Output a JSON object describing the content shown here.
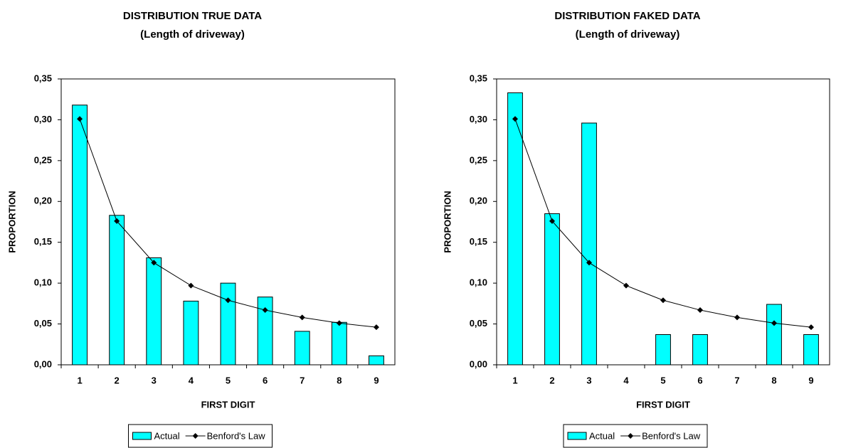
{
  "chart_data": [
    {
      "type": "bar",
      "title": "DISTRIBUTION TRUE DATA",
      "subtitle": "(Length of driveway)",
      "x_label": "FIRST DIGIT",
      "y_label": "PROPORTION",
      "categories": [
        "1",
        "2",
        "3",
        "4",
        "5",
        "6",
        "7",
        "8",
        "9"
      ],
      "series": [
        {
          "name": "Actual",
          "type": "bar",
          "color": "#00ffff",
          "values": [
            0.318,
            0.183,
            0.131,
            0.078,
            0.1,
            0.083,
            0.041,
            0.052,
            0.011
          ]
        },
        {
          "name": "Benford's Law",
          "type": "line",
          "color": "#000000",
          "values": [
            0.301,
            0.176,
            0.125,
            0.097,
            0.079,
            0.067,
            0.058,
            0.051,
            0.046
          ]
        }
      ],
      "ylim": [
        0,
        0.35
      ],
      "yticks": [
        {
          "value": 0,
          "label": "0,00"
        },
        {
          "value": 0.05,
          "label": "0,05"
        },
        {
          "value": 0.1,
          "label": "0,10"
        },
        {
          "value": 0.15,
          "label": "0,15"
        },
        {
          "value": 0.2,
          "label": "0,20"
        },
        {
          "value": 0.25,
          "label": "0,25"
        },
        {
          "value": 0.3,
          "label": "0,30"
        },
        {
          "value": 0.35,
          "label": "0,35"
        }
      ],
      "grid": false,
      "legend": "bottom"
    },
    {
      "type": "bar",
      "title": "DISTRIBUTION FAKED DATA",
      "subtitle": "(Length of driveway)",
      "x_label": "FIRST DIGIT",
      "y_label": "PROPORTION",
      "categories": [
        "1",
        "2",
        "3",
        "4",
        "5",
        "6",
        "7",
        "8",
        "9"
      ],
      "series": [
        {
          "name": "Actual",
          "type": "bar",
          "color": "#00ffff",
          "values": [
            0.333,
            0.185,
            0.296,
            0,
            0.037,
            0.037,
            0,
            0.074,
            0.037
          ]
        },
        {
          "name": "Benford's Law",
          "type": "line",
          "color": "#000000",
          "values": [
            0.301,
            0.176,
            0.125,
            0.097,
            0.079,
            0.067,
            0.058,
            0.051,
            0.046
          ]
        }
      ],
      "ylim": [
        0,
        0.35
      ],
      "yticks": [
        {
          "value": 0,
          "label": "0,00"
        },
        {
          "value": 0.05,
          "label": "0,05"
        },
        {
          "value": 0.1,
          "label": "0,10"
        },
        {
          "value": 0.15,
          "label": "0,15"
        },
        {
          "value": 0.2,
          "label": "0,20"
        },
        {
          "value": 0.25,
          "label": "0,25"
        },
        {
          "value": 0.3,
          "label": "0,30"
        },
        {
          "value": 0.35,
          "label": "0,35"
        }
      ],
      "grid": false,
      "legend": "bottom"
    }
  ]
}
